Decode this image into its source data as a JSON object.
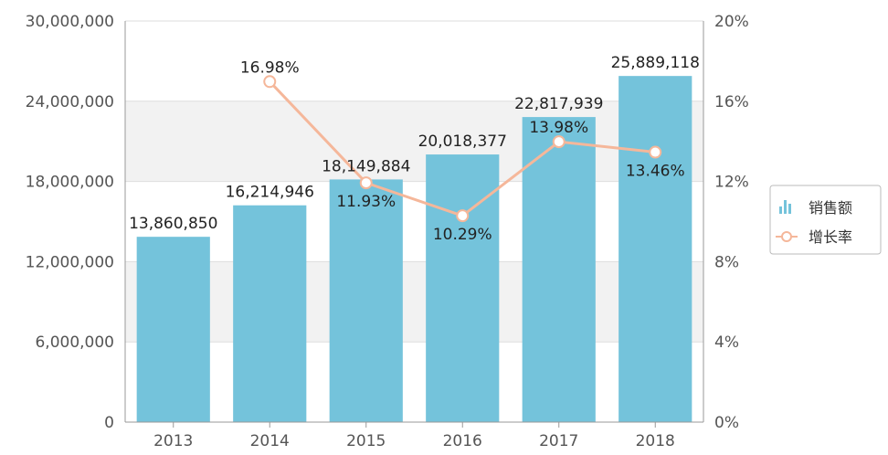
{
  "chart_data": {
    "type": "bar",
    "categories": [
      "2013",
      "2014",
      "2015",
      "2016",
      "2017",
      "2018"
    ],
    "series": [
      {
        "name": "销售额",
        "type": "bar",
        "axis": "left",
        "values": [
          13860850,
          16214946,
          18149884,
          20018377,
          22817939,
          25889118
        ],
        "labels": [
          "13,860,850",
          "16,214,946",
          "18,149,884",
          "20,018,377",
          "22,817,939",
          "25,889,118"
        ],
        "color": "#74c3db"
      },
      {
        "name": "增长率",
        "type": "line",
        "axis": "right",
        "values": [
          null,
          16.98,
          11.93,
          10.29,
          13.98,
          13.46
        ],
        "labels": [
          "",
          "16.98%",
          "11.93%",
          "10.29%",
          "13.98%",
          "13.46%"
        ],
        "color": "#f5b79a"
      }
    ],
    "y_left": {
      "ylim": [
        0,
        30000000
      ],
      "ticks": [
        0,
        6000000,
        12000000,
        18000000,
        24000000,
        30000000
      ],
      "tick_labels": [
        "0",
        "6,000,000",
        "12,000,000",
        "18,000,000",
        "24,000,000",
        "30,000,000"
      ]
    },
    "y_right": {
      "ylim": [
        0,
        20
      ],
      "ticks": [
        0,
        4,
        8,
        12,
        16,
        20
      ],
      "tick_labels": [
        "0%",
        "4%",
        "8%",
        "12%",
        "16%",
        "20%"
      ]
    },
    "grid": true,
    "legend": "right"
  }
}
